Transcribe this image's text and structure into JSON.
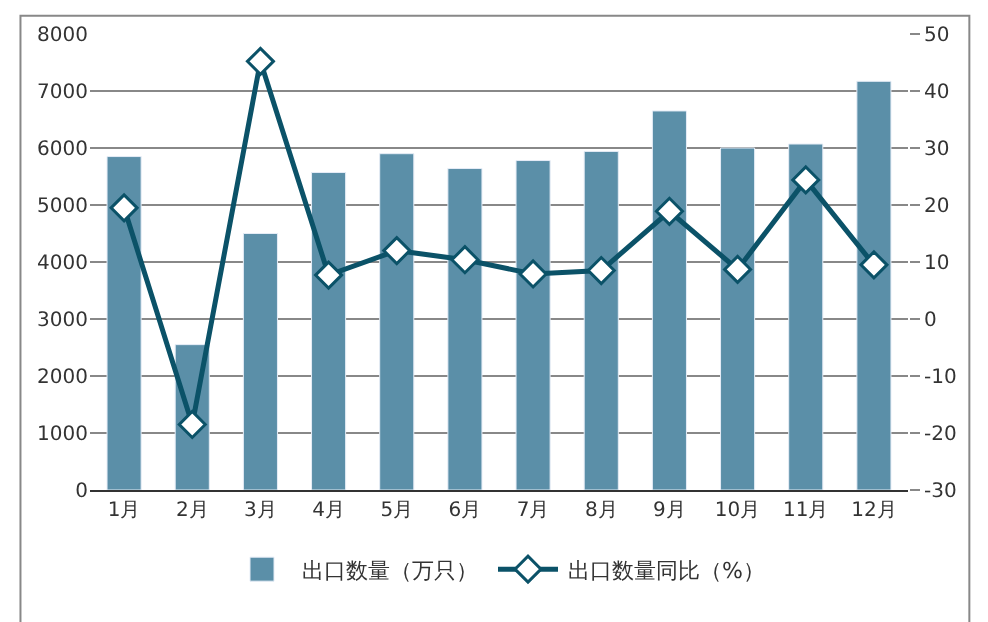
{
  "chart_data": {
    "type": "bar",
    "categories": [
      "1月",
      "2月",
      "3月",
      "4月",
      "5月",
      "6月",
      "7月",
      "8月",
      "9月",
      "10月",
      "11月",
      "12月"
    ],
    "series": [
      {
        "name": "出口数量（万只）",
        "color": "#5b8fa8",
        "values": [
          5850,
          2550,
          4500,
          5570,
          5900,
          5640,
          5780,
          5940,
          6650,
          6000,
          6070,
          7170
        ]
      },
      {
        "name": "出口数量同比（%）",
        "type": "line",
        "axis": "y2",
        "color": "#0b5268",
        "marker": "diamond",
        "values": [
          19.5,
          -18.5,
          45.2,
          7.7,
          12,
          10.4,
          7.9,
          8.5,
          18.9,
          8.7,
          24.4,
          9.5
        ]
      }
    ],
    "ylim": [
      0,
      8000
    ],
    "yticks": [
      0,
      1000,
      2000,
      3000,
      4000,
      5000,
      6000,
      7000,
      8000
    ],
    "y2lim": [
      -30,
      50
    ],
    "y2ticks": [
      -30,
      -20,
      -10,
      0,
      10,
      20,
      30,
      40,
      50
    ],
    "grid": "y",
    "legend": "bottom"
  }
}
